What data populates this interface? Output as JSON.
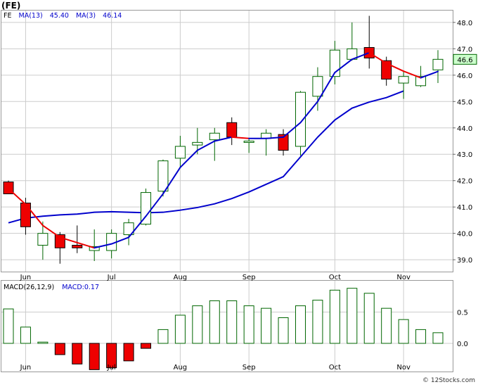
{
  "ticker_label": "(FE)",
  "copyright": "© 12Stocks.com",
  "price_panel": {
    "legend": [
      {
        "text": "FE",
        "color": "#000000"
      },
      {
        "text": "MA(13)",
        "color": "#0000cc"
      },
      {
        "text": "45.40",
        "color": "#0000cc"
      },
      {
        "text": "MA(3)",
        "color": "#0000cc"
      },
      {
        "text": "46.14",
        "color": "#0000cc"
      }
    ],
    "last_price_label": "46.6"
  },
  "macd_panel": {
    "legend": [
      {
        "text": "MACD(26,12,9)",
        "color": "#000000"
      },
      {
        "text": "MACD:0.17",
        "color": "#0000cc"
      }
    ]
  },
  "colors": {
    "up_candle_fill": "#ffffff",
    "up_candle_stroke": "#006600",
    "down_candle_fill": "#ee0000",
    "ma13": "#0000cc",
    "ma3_up": "#0000cc",
    "ma3_down": "#ee0000",
    "grid": "#cccccc",
    "last_price_box": "#ccffcc"
  },
  "chart_data": [
    {
      "type": "candlestick",
      "title": "(FE)",
      "x_tick_labels": [
        "Jun",
        "Jul",
        "Aug",
        "Sep",
        "Oct",
        "Nov"
      ],
      "x_tick_index": [
        1,
        6,
        10,
        14,
        19,
        23
      ],
      "y_ticks": [
        39.0,
        40.0,
        41.0,
        42.0,
        43.0,
        44.0,
        45.0,
        46.0,
        47.0,
        48.0
      ],
      "ylim": [
        38.55,
        48.45
      ],
      "grid": true,
      "y_axis_position": "right",
      "candles": [
        {
          "o": 41.95,
          "h": 42.0,
          "l": 41.5,
          "c": 41.5
        },
        {
          "o": 41.15,
          "h": 41.35,
          "l": 39.95,
          "c": 40.25
        },
        {
          "o": 39.55,
          "h": 40.45,
          "l": 39.0,
          "c": 40.0
        },
        {
          "o": 39.95,
          "h": 40.05,
          "l": 38.85,
          "c": 39.45
        },
        {
          "o": 39.55,
          "h": 40.3,
          "l": 39.25,
          "c": 39.45
        },
        {
          "o": 39.35,
          "h": 40.15,
          "l": 38.95,
          "c": 39.5
        },
        {
          "o": 39.35,
          "h": 40.15,
          "l": 39.05,
          "c": 40.0
        },
        {
          "o": 39.95,
          "h": 40.55,
          "l": 39.55,
          "c": 40.4
        },
        {
          "o": 40.35,
          "h": 41.7,
          "l": 40.3,
          "c": 41.55
        },
        {
          "o": 41.6,
          "h": 42.8,
          "l": 41.4,
          "c": 42.75
        },
        {
          "o": 42.85,
          "h": 43.7,
          "l": 42.5,
          "c": 43.3
        },
        {
          "o": 43.35,
          "h": 44.0,
          "l": 43.0,
          "c": 43.45
        },
        {
          "o": 43.55,
          "h": 44.0,
          "l": 42.75,
          "c": 43.8
        },
        {
          "o": 44.2,
          "h": 44.4,
          "l": 43.35,
          "c": 43.65
        },
        {
          "o": 43.5,
          "h": 43.6,
          "l": 43.05,
          "c": 43.5
        },
        {
          "o": 43.6,
          "h": 43.95,
          "l": 42.95,
          "c": 43.8
        },
        {
          "o": 43.75,
          "h": 43.95,
          "l": 42.95,
          "c": 43.15
        },
        {
          "o": 43.3,
          "h": 45.4,
          "l": 42.95,
          "c": 45.35
        },
        {
          "o": 45.2,
          "h": 46.3,
          "l": 44.65,
          "c": 45.95
        },
        {
          "o": 45.95,
          "h": 47.3,
          "l": 45.65,
          "c": 46.95
        },
        {
          "o": 46.6,
          "h": 48.0,
          "l": 46.55,
          "c": 47.0
        },
        {
          "o": 47.05,
          "h": 48.25,
          "l": 46.25,
          "c": 46.65
        },
        {
          "o": 46.55,
          "h": 46.7,
          "l": 45.6,
          "c": 45.85
        },
        {
          "o": 45.7,
          "h": 46.15,
          "l": 45.1,
          "c": 45.95
        },
        {
          "o": 45.6,
          "h": 46.35,
          "l": 45.55,
          "c": 45.95
        },
        {
          "o": 46.2,
          "h": 46.95,
          "l": 45.7,
          "c": 46.6
        }
      ],
      "ma13": [
        40.4,
        40.58,
        40.65,
        40.7,
        40.73,
        40.8,
        40.82,
        40.8,
        40.78,
        40.8,
        40.88,
        40.98,
        41.12,
        41.32,
        41.57,
        41.86,
        42.15,
        42.9,
        43.65,
        44.3,
        44.75,
        44.98,
        45.15,
        45.4
      ],
      "ma13_start_index": 0,
      "ma3": [
        41.7,
        41.1,
        40.3,
        39.85,
        39.65,
        39.45,
        39.6,
        39.85,
        40.65,
        41.5,
        42.5,
        43.15,
        43.5,
        43.65,
        43.6,
        43.6,
        43.65,
        44.2,
        45.0,
        46.1,
        46.6,
        46.85,
        46.45,
        46.15,
        45.9,
        46.14
      ]
    },
    {
      "type": "bar",
      "title": "MACD(26,12,9)",
      "y_ticks": [
        0.0,
        0.5
      ],
      "ylim": [
        -0.45,
        1.0
      ],
      "grid": true,
      "values": [
        0.55,
        0.26,
        0.02,
        -0.18,
        -0.33,
        -0.42,
        -0.39,
        -0.28,
        -0.08,
        0.22,
        0.45,
        0.6,
        0.68,
        0.68,
        0.6,
        0.56,
        0.41,
        0.6,
        0.69,
        0.85,
        0.88,
        0.8,
        0.56,
        0.38,
        0.22,
        0.17
      ]
    }
  ]
}
